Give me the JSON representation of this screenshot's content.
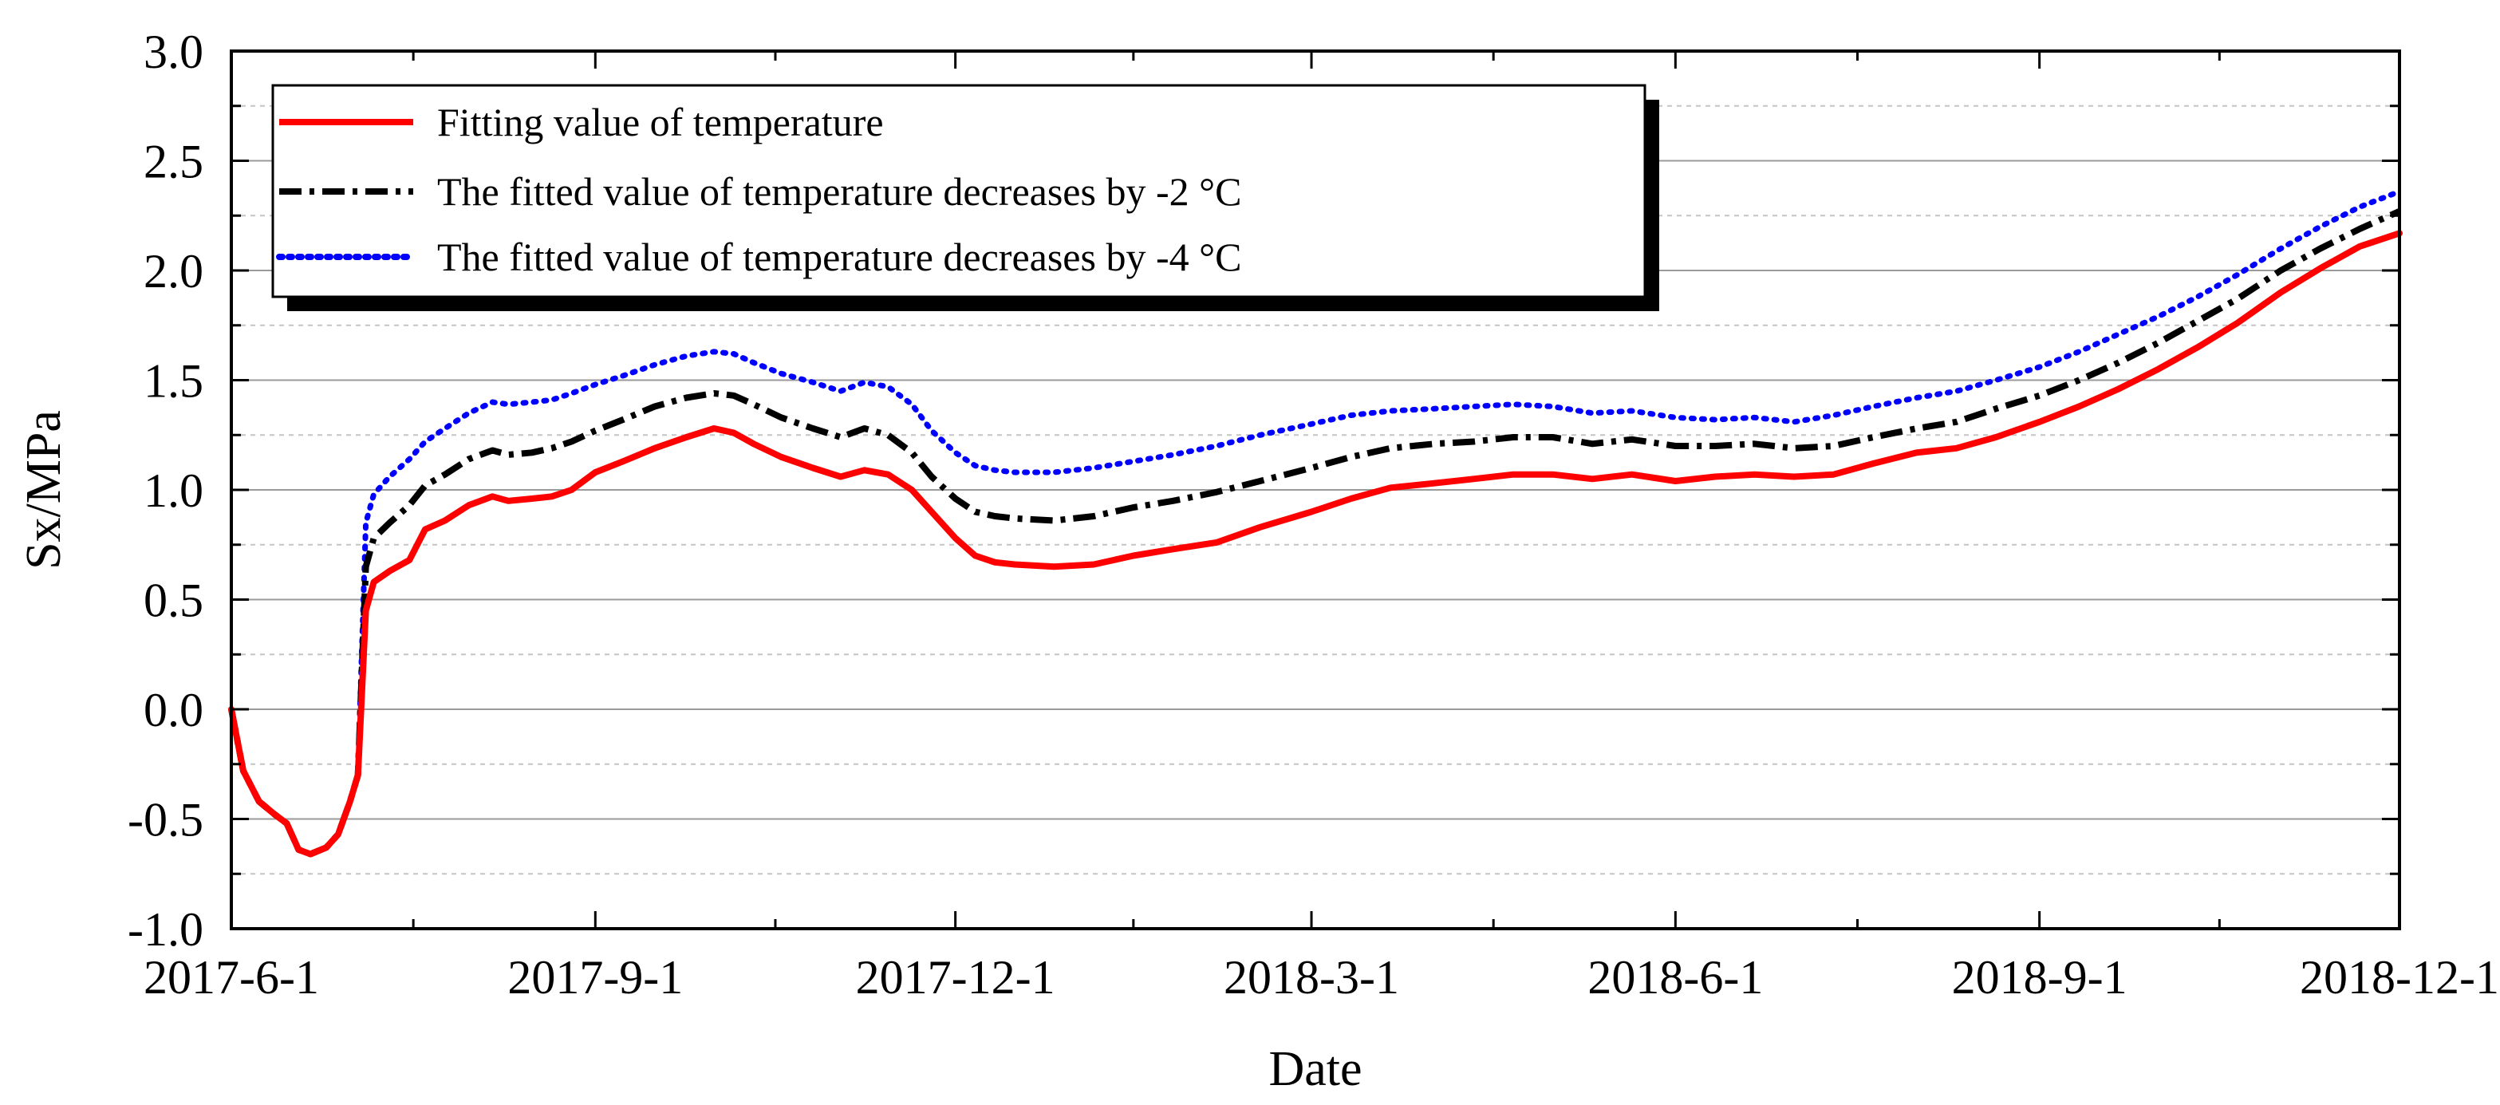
{
  "chart_data": {
    "type": "line",
    "xlabel": "Date",
    "ylabel": "Sx/MPa",
    "xlim": [
      "2017-6-1",
      "2018-12-1"
    ],
    "ylim": [
      -1.0,
      3.0
    ],
    "x_ticks": [
      "2017-6-1",
      "2017-9-1",
      "2017-12-1",
      "2018-3-1",
      "2018-6-1",
      "2018-9-1",
      "2018-12-1"
    ],
    "y_ticks": [
      "-1.0",
      "-0.5",
      "0.0",
      "0.5",
      "1.0",
      "1.5",
      "2.0",
      "2.5",
      "3.0"
    ],
    "grid": {
      "major": true,
      "minor": true,
      "axis": "y"
    },
    "legend": {
      "placement": "top-left"
    },
    "series": [
      {
        "name": "Fitting value of temperature",
        "color": "#ff0000",
        "style": "solid",
        "points": [
          [
            "2017-6-1",
            0.0
          ],
          [
            "2017-6-4",
            -0.28
          ],
          [
            "2017-6-8",
            -0.42
          ],
          [
            "2017-6-12",
            -0.48
          ],
          [
            "2017-6-15",
            -0.52
          ],
          [
            "2017-6-18",
            -0.64
          ],
          [
            "2017-6-21",
            -0.66
          ],
          [
            "2017-6-25",
            -0.63
          ],
          [
            "2017-6-28",
            -0.57
          ],
          [
            "2017-7-1",
            -0.42
          ],
          [
            "2017-7-3",
            -0.3
          ],
          [
            "2017-7-5",
            0.45
          ],
          [
            "2017-7-7",
            0.58
          ],
          [
            "2017-7-11",
            0.63
          ],
          [
            "2017-7-16",
            0.68
          ],
          [
            "2017-7-20",
            0.82
          ],
          [
            "2017-7-25",
            0.86
          ],
          [
            "2017-7-31",
            0.93
          ],
          [
            "2017-8-6",
            0.97
          ],
          [
            "2017-8-10",
            0.95
          ],
          [
            "2017-8-16",
            0.96
          ],
          [
            "2017-8-21",
            0.97
          ],
          [
            "2017-8-26",
            1.0
          ],
          [
            "2017-9-1",
            1.08
          ],
          [
            "2017-9-8",
            1.13
          ],
          [
            "2017-9-16",
            1.19
          ],
          [
            "2017-9-24",
            1.24
          ],
          [
            "2017-10-1",
            1.28
          ],
          [
            "2017-10-6",
            1.26
          ],
          [
            "2017-10-11",
            1.21
          ],
          [
            "2017-10-18",
            1.15
          ],
          [
            "2017-10-26",
            1.1
          ],
          [
            "2017-11-2",
            1.06
          ],
          [
            "2017-11-8",
            1.09
          ],
          [
            "2017-11-14",
            1.07
          ],
          [
            "2017-11-20",
            1.0
          ],
          [
            "2017-11-25",
            0.9
          ],
          [
            "2017-12-1",
            0.78
          ],
          [
            "2017-12-6",
            0.7
          ],
          [
            "2017-12-11",
            0.67
          ],
          [
            "2017-12-16",
            0.66
          ],
          [
            "2017-12-26",
            0.65
          ],
          [
            "2018-1-5",
            0.66
          ],
          [
            "2018-1-15",
            0.7
          ],
          [
            "2018-1-25",
            0.73
          ],
          [
            "2018-2-5",
            0.76
          ],
          [
            "2018-2-16",
            0.83
          ],
          [
            "2018-3-1",
            0.9
          ],
          [
            "2018-3-11",
            0.96
          ],
          [
            "2018-3-21",
            1.01
          ],
          [
            "2018-4-1",
            1.03
          ],
          [
            "2018-4-11",
            1.05
          ],
          [
            "2018-4-21",
            1.07
          ],
          [
            "2018-5-1",
            1.07
          ],
          [
            "2018-5-11",
            1.05
          ],
          [
            "2018-5-21",
            1.07
          ],
          [
            "2018-6-1",
            1.04
          ],
          [
            "2018-6-11",
            1.06
          ],
          [
            "2018-6-21",
            1.07
          ],
          [
            "2018-7-1",
            1.06
          ],
          [
            "2018-7-11",
            1.07
          ],
          [
            "2018-7-21",
            1.12
          ],
          [
            "2018-8-1",
            1.17
          ],
          [
            "2018-8-11",
            1.19
          ],
          [
            "2018-8-21",
            1.24
          ],
          [
            "2018-9-1",
            1.31
          ],
          [
            "2018-9-11",
            1.38
          ],
          [
            "2018-9-21",
            1.46
          ],
          [
            "2018-10-1",
            1.55
          ],
          [
            "2018-10-11",
            1.65
          ],
          [
            "2018-10-21",
            1.76
          ],
          [
            "2018-11-1",
            1.9
          ],
          [
            "2018-11-11",
            2.01
          ],
          [
            "2018-11-21",
            2.11
          ],
          [
            "2018-12-1",
            2.17
          ]
        ]
      },
      {
        "name": "The fitted value of temperature decreases by -2 °C",
        "color": "#000000",
        "style": "dash-dot",
        "points": [
          [
            "2017-6-1",
            0.0
          ],
          [
            "2017-6-4",
            -0.28
          ],
          [
            "2017-6-8",
            -0.42
          ],
          [
            "2017-6-12",
            -0.48
          ],
          [
            "2017-6-15",
            -0.52
          ],
          [
            "2017-6-18",
            -0.64
          ],
          [
            "2017-6-21",
            -0.66
          ],
          [
            "2017-6-25",
            -0.63
          ],
          [
            "2017-6-28",
            -0.57
          ],
          [
            "2017-7-1",
            -0.42
          ],
          [
            "2017-7-3",
            -0.3
          ],
          [
            "2017-7-5",
            0.65
          ],
          [
            "2017-7-7",
            0.78
          ],
          [
            "2017-7-11",
            0.85
          ],
          [
            "2017-7-16",
            0.93
          ],
          [
            "2017-7-20",
            1.02
          ],
          [
            "2017-7-25",
            1.07
          ],
          [
            "2017-7-31",
            1.14
          ],
          [
            "2017-8-6",
            1.18
          ],
          [
            "2017-8-10",
            1.16
          ],
          [
            "2017-8-16",
            1.17
          ],
          [
            "2017-8-21",
            1.19
          ],
          [
            "2017-8-26",
            1.22
          ],
          [
            "2017-9-1",
            1.27
          ],
          [
            "2017-9-8",
            1.32
          ],
          [
            "2017-9-16",
            1.38
          ],
          [
            "2017-9-24",
            1.42
          ],
          [
            "2017-10-1",
            1.44
          ],
          [
            "2017-10-6",
            1.43
          ],
          [
            "2017-10-11",
            1.39
          ],
          [
            "2017-10-18",
            1.33
          ],
          [
            "2017-10-26",
            1.28
          ],
          [
            "2017-11-2",
            1.24
          ],
          [
            "2017-11-8",
            1.28
          ],
          [
            "2017-11-14",
            1.25
          ],
          [
            "2017-11-20",
            1.17
          ],
          [
            "2017-11-25",
            1.06
          ],
          [
            "2017-12-1",
            0.96
          ],
          [
            "2017-12-6",
            0.9
          ],
          [
            "2017-12-11",
            0.88
          ],
          [
            "2017-12-16",
            0.87
          ],
          [
            "2017-12-26",
            0.86
          ],
          [
            "2018-1-5",
            0.88
          ],
          [
            "2018-1-15",
            0.92
          ],
          [
            "2018-1-25",
            0.95
          ],
          [
            "2018-2-5",
            0.99
          ],
          [
            "2018-2-16",
            1.04
          ],
          [
            "2018-3-1",
            1.1
          ],
          [
            "2018-3-11",
            1.15
          ],
          [
            "2018-3-21",
            1.19
          ],
          [
            "2018-4-1",
            1.21
          ],
          [
            "2018-4-11",
            1.22
          ],
          [
            "2018-4-21",
            1.24
          ],
          [
            "2018-5-1",
            1.24
          ],
          [
            "2018-5-11",
            1.21
          ],
          [
            "2018-5-21",
            1.23
          ],
          [
            "2018-6-1",
            1.2
          ],
          [
            "2018-6-11",
            1.2
          ],
          [
            "2018-6-21",
            1.21
          ],
          [
            "2018-7-1",
            1.19
          ],
          [
            "2018-7-11",
            1.2
          ],
          [
            "2018-7-21",
            1.24
          ],
          [
            "2018-8-1",
            1.28
          ],
          [
            "2018-8-11",
            1.31
          ],
          [
            "2018-8-21",
            1.37
          ],
          [
            "2018-9-1",
            1.43
          ],
          [
            "2018-9-11",
            1.5
          ],
          [
            "2018-9-21",
            1.58
          ],
          [
            "2018-10-1",
            1.67
          ],
          [
            "2018-10-11",
            1.77
          ],
          [
            "2018-10-21",
            1.87
          ],
          [
            "2018-11-1",
            2.0
          ],
          [
            "2018-11-11",
            2.1
          ],
          [
            "2018-11-21",
            2.19
          ],
          [
            "2018-12-1",
            2.27
          ]
        ]
      },
      {
        "name": "The fitted value of temperature decreases by -4 °C",
        "color": "#0000ff",
        "style": "dotted",
        "points": [
          [
            "2017-6-1",
            0.0
          ],
          [
            "2017-6-4",
            -0.28
          ],
          [
            "2017-6-8",
            -0.42
          ],
          [
            "2017-6-12",
            -0.48
          ],
          [
            "2017-6-15",
            -0.52
          ],
          [
            "2017-6-18",
            -0.64
          ],
          [
            "2017-6-21",
            -0.66
          ],
          [
            "2017-6-25",
            -0.63
          ],
          [
            "2017-6-28",
            -0.57
          ],
          [
            "2017-7-1",
            -0.42
          ],
          [
            "2017-7-3",
            -0.3
          ],
          [
            "2017-7-5",
            0.85
          ],
          [
            "2017-7-7",
            0.98
          ],
          [
            "2017-7-11",
            1.06
          ],
          [
            "2017-7-16",
            1.14
          ],
          [
            "2017-7-20",
            1.22
          ],
          [
            "2017-7-25",
            1.28
          ],
          [
            "2017-7-31",
            1.35
          ],
          [
            "2017-8-6",
            1.4
          ],
          [
            "2017-8-10",
            1.39
          ],
          [
            "2017-8-16",
            1.4
          ],
          [
            "2017-8-21",
            1.41
          ],
          [
            "2017-8-26",
            1.44
          ],
          [
            "2017-9-1",
            1.48
          ],
          [
            "2017-9-8",
            1.52
          ],
          [
            "2017-9-16",
            1.57
          ],
          [
            "2017-9-24",
            1.61
          ],
          [
            "2017-10-1",
            1.63
          ],
          [
            "2017-10-6",
            1.62
          ],
          [
            "2017-10-11",
            1.58
          ],
          [
            "2017-10-18",
            1.53
          ],
          [
            "2017-10-26",
            1.49
          ],
          [
            "2017-11-2",
            1.45
          ],
          [
            "2017-11-8",
            1.49
          ],
          [
            "2017-11-14",
            1.47
          ],
          [
            "2017-11-20",
            1.39
          ],
          [
            "2017-11-25",
            1.27
          ],
          [
            "2017-12-1",
            1.17
          ],
          [
            "2017-12-6",
            1.11
          ],
          [
            "2017-12-11",
            1.09
          ],
          [
            "2017-12-16",
            1.08
          ],
          [
            "2017-12-26",
            1.08
          ],
          [
            "2018-1-5",
            1.1
          ],
          [
            "2018-1-15",
            1.13
          ],
          [
            "2018-1-25",
            1.16
          ],
          [
            "2018-2-5",
            1.2
          ],
          [
            "2018-2-16",
            1.25
          ],
          [
            "2018-3-1",
            1.3
          ],
          [
            "2018-3-11",
            1.34
          ],
          [
            "2018-3-21",
            1.36
          ],
          [
            "2018-4-1",
            1.37
          ],
          [
            "2018-4-11",
            1.38
          ],
          [
            "2018-4-21",
            1.39
          ],
          [
            "2018-5-1",
            1.38
          ],
          [
            "2018-5-11",
            1.35
          ],
          [
            "2018-5-21",
            1.36
          ],
          [
            "2018-6-1",
            1.33
          ],
          [
            "2018-6-11",
            1.32
          ],
          [
            "2018-6-21",
            1.33
          ],
          [
            "2018-7-1",
            1.31
          ],
          [
            "2018-7-11",
            1.34
          ],
          [
            "2018-7-21",
            1.38
          ],
          [
            "2018-8-1",
            1.42
          ],
          [
            "2018-8-11",
            1.45
          ],
          [
            "2018-8-21",
            1.5
          ],
          [
            "2018-9-1",
            1.56
          ],
          [
            "2018-9-11",
            1.63
          ],
          [
            "2018-9-21",
            1.71
          ],
          [
            "2018-10-1",
            1.79
          ],
          [
            "2018-10-11",
            1.88
          ],
          [
            "2018-10-21",
            1.98
          ],
          [
            "2018-11-1",
            2.1
          ],
          [
            "2018-11-11",
            2.2
          ],
          [
            "2018-11-21",
            2.29
          ],
          [
            "2018-12-1",
            2.36
          ]
        ]
      }
    ]
  }
}
